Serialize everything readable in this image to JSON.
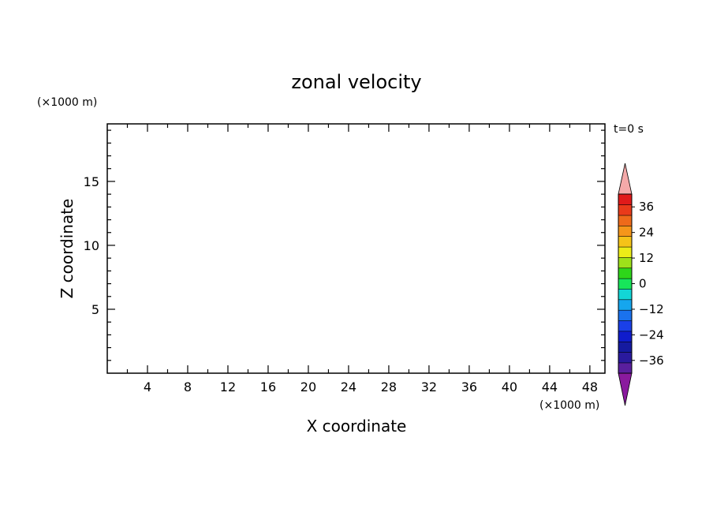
{
  "chart_data": {
    "type": "heatmap",
    "title": "zonal velocity",
    "xlabel": "X coordinate",
    "ylabel": "Z coordinate",
    "x_unit": "(×1000 m)",
    "y_unit": "(×1000 m)",
    "time_label": "t=0 s",
    "xlim": [
      0,
      49.5
    ],
    "ylim": [
      0,
      19.5
    ],
    "x_ticks": [
      4,
      8,
      12,
      16,
      20,
      24,
      28,
      32,
      36,
      40,
      44,
      48
    ],
    "y_ticks": [
      5,
      10,
      15
    ],
    "x_minor_step": 2,
    "y_minor_step": 1,
    "grid": false,
    "values": [],
    "colorbar": {
      "levels": [
        -42,
        -36,
        -30,
        -24,
        -18,
        -12,
        -6,
        0,
        6,
        12,
        18,
        24,
        30,
        36,
        42
      ],
      "tick_labels": [
        "36",
        "24",
        "12",
        "0",
        "−12",
        "−24",
        "−36"
      ],
      "tick_values": [
        36,
        24,
        12,
        0,
        -12,
        -24,
        -36
      ],
      "colors": [
        "#5a1f9e",
        "#2a1a9e",
        "#151aa0",
        "#0f1ccc",
        "#1a40e8",
        "#1a72ee",
        "#15a6ee",
        "#12d6d6",
        "#17e65a",
        "#2ed61a",
        "#9ee11a",
        "#ecec18",
        "#f5c318",
        "#f5961a",
        "#ee6a1a",
        "#e93a1a",
        "#e01a1a"
      ],
      "over_color": "#f4a9a9",
      "under_color": "#8a1a9e"
    }
  }
}
